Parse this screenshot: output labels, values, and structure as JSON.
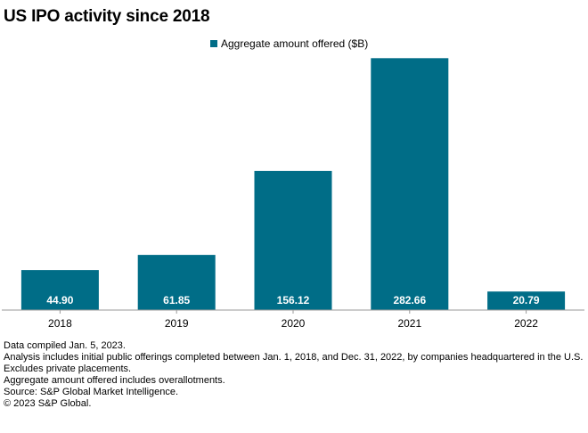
{
  "colors": {
    "bar": "#006d87",
    "axis": "#9a9a9a",
    "bar_label": "#ffffff",
    "text": "#000000"
  },
  "chart_data": {
    "type": "bar",
    "title": "US IPO activity since 2018",
    "categories": [
      "2018",
      "2019",
      "2020",
      "2021",
      "2022"
    ],
    "series": [
      {
        "name": "Aggregate amount offered ($B)",
        "values": [
          44.9,
          61.85,
          156.12,
          282.66,
          20.79
        ],
        "labels": [
          "44.90",
          "61.85",
          "156.12",
          "282.66",
          "20.79"
        ]
      }
    ],
    "xlabel": "",
    "ylabel": "",
    "ylim": [
      0,
      300
    ],
    "grid": false,
    "legend": "top-center"
  },
  "notes": [
    "Data compiled Jan. 5, 2023.",
    "Analysis includes initial public offerings completed between Jan. 1, 2018, and Dec. 31, 2022, by companies headquartered in the U.S.",
    "Excludes private placements.",
    "Aggregate amount offered includes overallotments.",
    "Source: S&P Global Market Intelligence.",
    "© 2023 S&P Global."
  ]
}
